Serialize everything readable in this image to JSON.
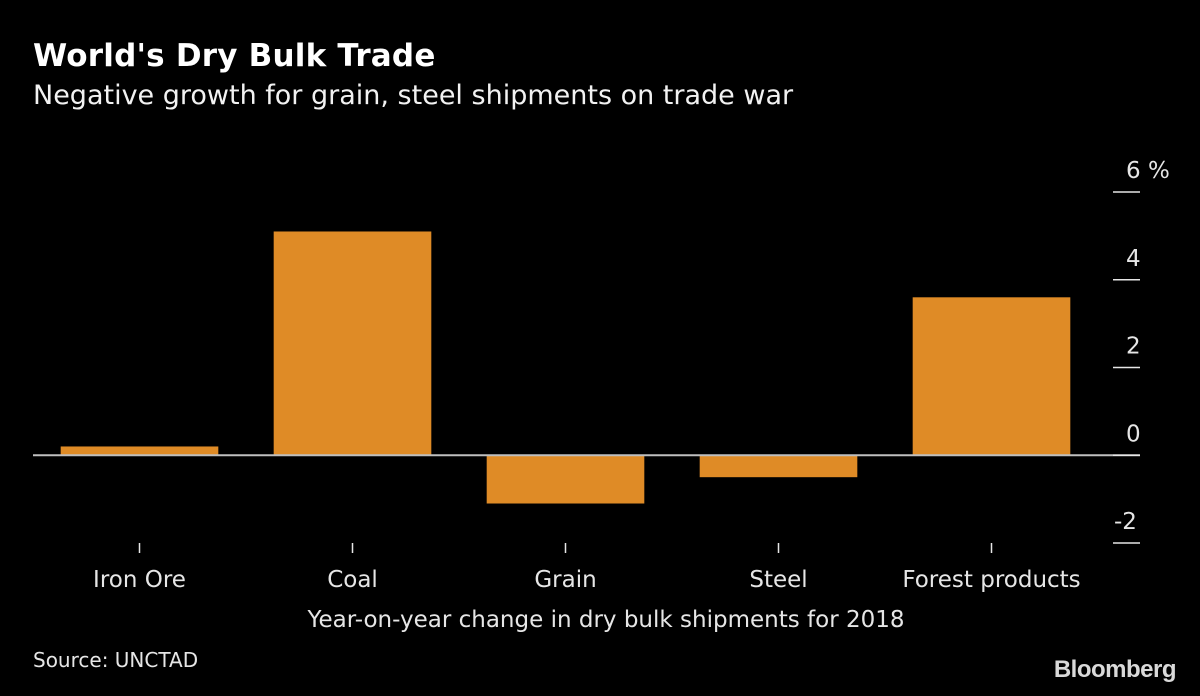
{
  "header": {
    "title": "World's Dry Bulk Trade",
    "subtitle": "Negative growth for grain, steel shipments on trade war"
  },
  "footer": {
    "source": "Source: UNCTAD",
    "brand": "Bloomberg"
  },
  "chart_data": {
    "type": "bar",
    "title": "World's Dry Bulk Trade",
    "subtitle": "Negative growth for grain, steel shipments on trade war",
    "categories": [
      "Iron Ore",
      "Coal",
      "Grain",
      "Steel",
      "Forest products"
    ],
    "values": [
      0.2,
      5.1,
      -1.1,
      -0.5,
      3.6
    ],
    "xlabel": "Year-on-year change in dry bulk shipments for 2018",
    "ylabel": "",
    "unit": "%",
    "ylim": [
      -2,
      6
    ],
    "yticks": [
      -2,
      0,
      2,
      4,
      6
    ],
    "ytick_labels": [
      "-2",
      "0",
      "2",
      "4",
      "6 %"
    ],
    "y_axis_position": "right",
    "grid": false,
    "bar_color": "#df8b26",
    "zero_line_color": "#bfbfbf",
    "legend": "none"
  }
}
